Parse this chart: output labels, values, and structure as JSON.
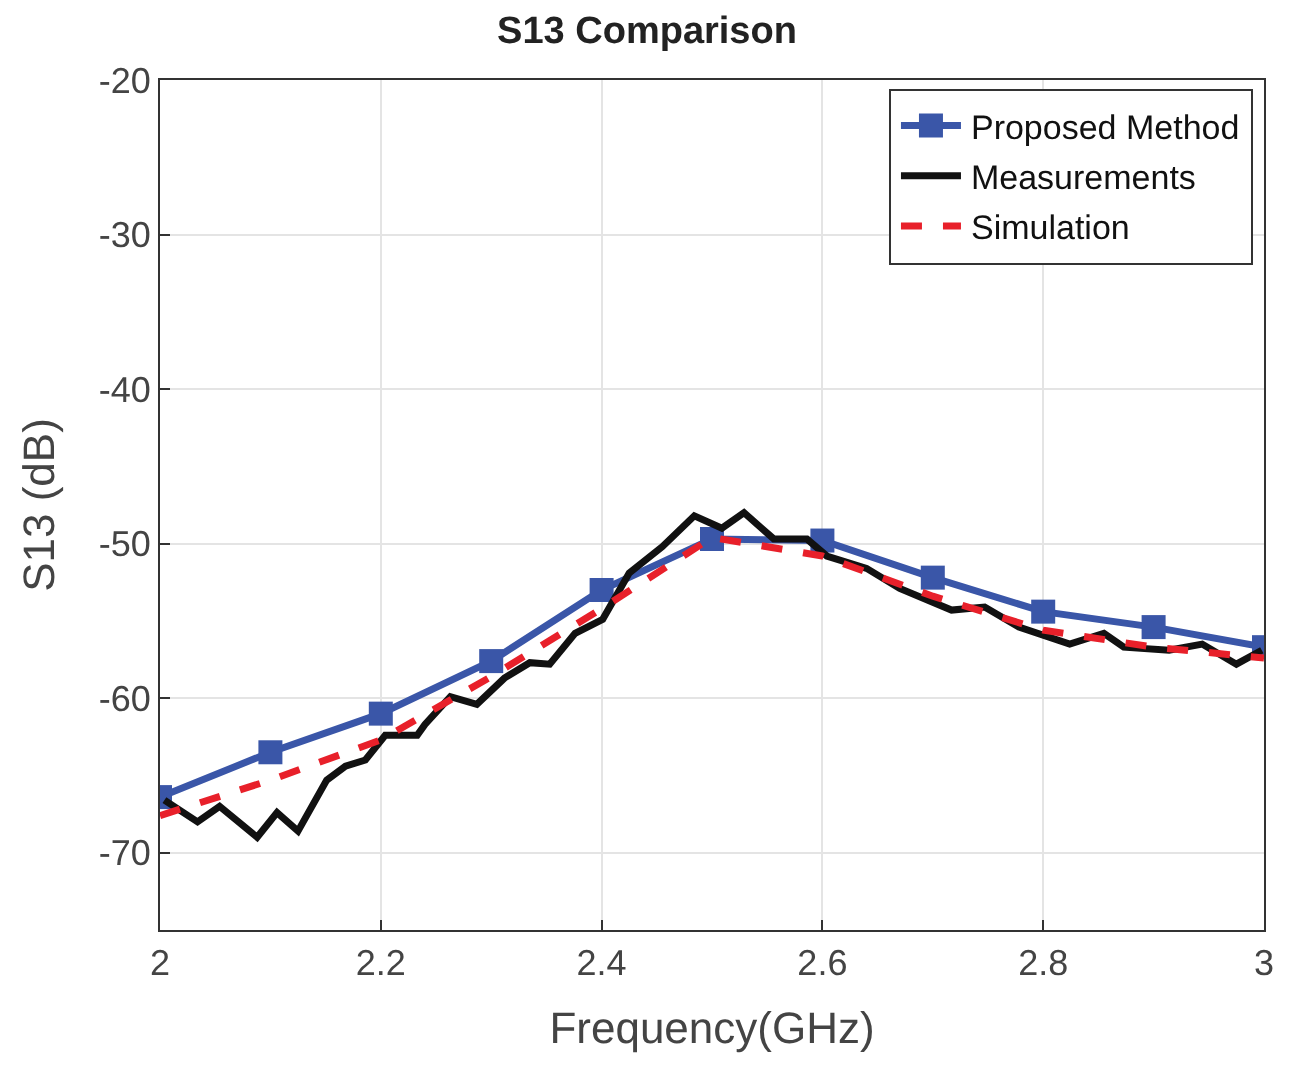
{
  "chart_data": {
    "type": "line",
    "title": "S13 Comparison",
    "xlabel": "Frequency(GHz)",
    "ylabel": "S13 (dB)",
    "xlim": [
      2,
      3
    ],
    "xticks": [
      2,
      2.2,
      2.4,
      2.6,
      2.8,
      3
    ],
    "ylim": [
      -75,
      -20
    ],
    "yticks": [
      -70,
      -60,
      -50,
      -40,
      -30,
      -20
    ],
    "grid": true,
    "legend": "top right",
    "series": [
      {
        "name": "Proposed Method",
        "color": "#3a56a8",
        "marker": "square",
        "line_style": "solid",
        "x": [
          2,
          2.1,
          2.2,
          2.3,
          2.4,
          2.5,
          2.6,
          2.7,
          2.8,
          2.9,
          3
        ],
        "values": [
          -66.4,
          -63.5,
          -61,
          -57.6,
          -53,
          -49.7,
          -49.8,
          -52.2,
          -54.4,
          -55.4,
          -56.7
        ]
      },
      {
        "name": "Measurements",
        "color": "#111111",
        "marker": "none",
        "line_style": "solid",
        "x": [
          2.004,
          2.034,
          2.054,
          2.088,
          2.106,
          2.125,
          2.151,
          2.168,
          2.186,
          2.204,
          2.233,
          2.24,
          2.263,
          2.287,
          2.312,
          2.335,
          2.353,
          2.376,
          2.401,
          2.425,
          2.455,
          2.484,
          2.509,
          2.529,
          2.556,
          2.586,
          2.604,
          2.64,
          2.67,
          2.717,
          2.747,
          2.778,
          2.824,
          2.855,
          2.873,
          2.914,
          2.944,
          2.975,
          2.998
        ],
        "values": [
          -66.6,
          -68,
          -67,
          -69,
          -67.4,
          -68.6,
          -65.3,
          -64.4,
          -64,
          -62.4,
          -62.4,
          -61.7,
          -59.9,
          -60.4,
          -58.7,
          -57.7,
          -57.8,
          -55.8,
          -54.9,
          -51.9,
          -50.2,
          -48.2,
          -49,
          -48,
          -49.7,
          -49.7,
          -50.8,
          -51.6,
          -52.9,
          -54.3,
          -54.1,
          -55.4,
          -56.5,
          -55.8,
          -56.7,
          -56.9,
          -56.5,
          -57.8,
          -56.9
        ]
      },
      {
        "name": "Simulation",
        "color": "#e8202a",
        "marker": "none",
        "line_style": "dashed",
        "x": [
          2,
          2.1,
          2.2,
          2.3,
          2.4,
          2.5,
          2.6,
          2.7,
          2.8,
          2.9,
          3
        ],
        "values": [
          -67.6,
          -65.3,
          -62.7,
          -58.6,
          -54.2,
          -49.6,
          -50.8,
          -53.4,
          -55.6,
          -56.7,
          -57.4
        ]
      }
    ]
  }
}
